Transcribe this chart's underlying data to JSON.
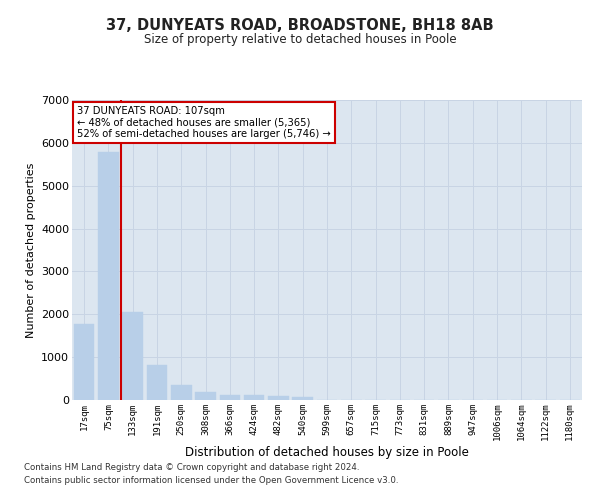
{
  "title": "37, DUNYEATS ROAD, BROADSTONE, BH18 8AB",
  "subtitle": "Size of property relative to detached houses in Poole",
  "xlabel": "Distribution of detached houses by size in Poole",
  "ylabel": "Number of detached properties",
  "bar_color": "#b8cfe8",
  "bar_edge_color": "#b8cfe8",
  "grid_color": "#c8d4e4",
  "bg_color": "#dce6f0",
  "vline_color": "#cc0000",
  "vline_x_index": 1,
  "annotation_line1": "37 DUNYEATS ROAD: 107sqm",
  "annotation_line2": "← 48% of detached houses are smaller (5,365)",
  "annotation_line3": "52% of semi-detached houses are larger (5,746) →",
  "annotation_box_color": "#ffffff",
  "annotation_box_edge_color": "#cc0000",
  "categories": [
    "17sqm",
    "75sqm",
    "133sqm",
    "191sqm",
    "250sqm",
    "308sqm",
    "366sqm",
    "424sqm",
    "482sqm",
    "540sqm",
    "599sqm",
    "657sqm",
    "715sqm",
    "773sqm",
    "831sqm",
    "889sqm",
    "947sqm",
    "1006sqm",
    "1064sqm",
    "1122sqm",
    "1180sqm"
  ],
  "values": [
    1780,
    5780,
    2060,
    820,
    340,
    190,
    120,
    110,
    90,
    70,
    0,
    0,
    0,
    0,
    0,
    0,
    0,
    0,
    0,
    0,
    0
  ],
  "ylim": [
    0,
    7000
  ],
  "yticks": [
    0,
    1000,
    2000,
    3000,
    4000,
    5000,
    6000,
    7000
  ],
  "footnote1": "Contains HM Land Registry data © Crown copyright and database right 2024.",
  "footnote2": "Contains public sector information licensed under the Open Government Licence v3.0."
}
